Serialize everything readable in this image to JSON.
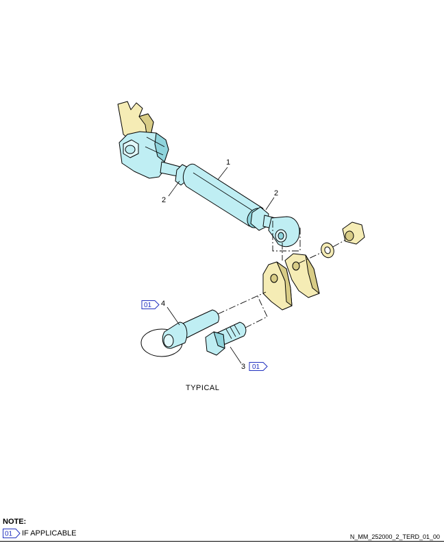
{
  "callouts": {
    "c1": "1",
    "c2a": "2",
    "c2b": "2",
    "c3": "3",
    "c4": "4"
  },
  "effectivity": {
    "tag_a": "01",
    "tag_b": "01"
  },
  "caption": "TYPICAL",
  "note": {
    "title": "NOTE:",
    "tag": "01",
    "text": "IF APPLICABLE"
  },
  "doc_id": "N_MM_252000_2_TERD_01_00",
  "colors": {
    "part_blue": "#bfeef3",
    "bracket_tan": "#f5ecb5",
    "effectivity_blue": "#1f2fbf"
  }
}
